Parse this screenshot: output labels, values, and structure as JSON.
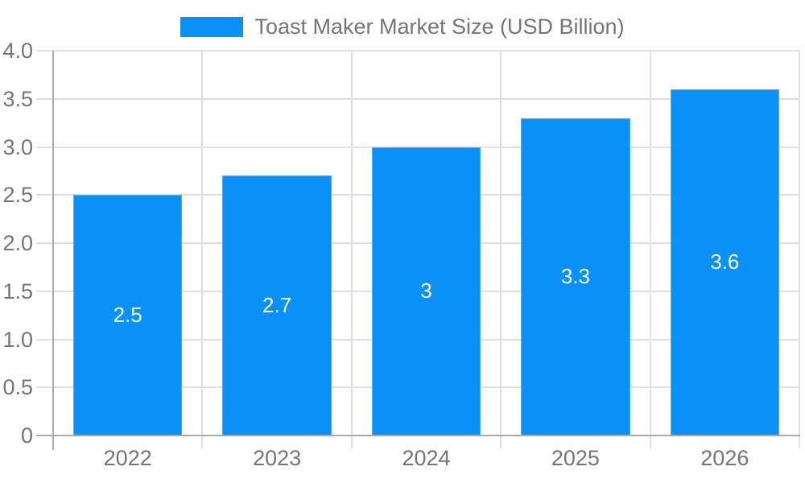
{
  "legend": {
    "label": "Toast Maker Market Size (USD Billion)"
  },
  "chart_data": {
    "type": "bar",
    "title": "Toast Maker Market Size (USD Billion)",
    "categories": [
      "2022",
      "2023",
      "2024",
      "2025",
      "2026"
    ],
    "values": [
      2.5,
      2.7,
      3,
      3.3,
      3.6
    ],
    "bar_labels": [
      "2.5",
      "2.7",
      "3",
      "3.3",
      "3.6"
    ],
    "xlabel": "",
    "ylabel": "",
    "ylim": [
      0,
      4
    ],
    "ytick_step": 0.5,
    "yticks": [
      "0",
      "0.5",
      "1.0",
      "1.5",
      "2.0",
      "2.5",
      "3.0",
      "3.5",
      "4.0"
    ],
    "grid": true,
    "legend_position": "top-center",
    "bar_label_position": "center-inside",
    "colors": {
      "bar": "#0a91f7",
      "grid": "#e0e0e0",
      "axis": "#aaaaaa",
      "tick_label": "#757575",
      "bar_label": "#ffffff",
      "background": "#ffffff"
    }
  }
}
